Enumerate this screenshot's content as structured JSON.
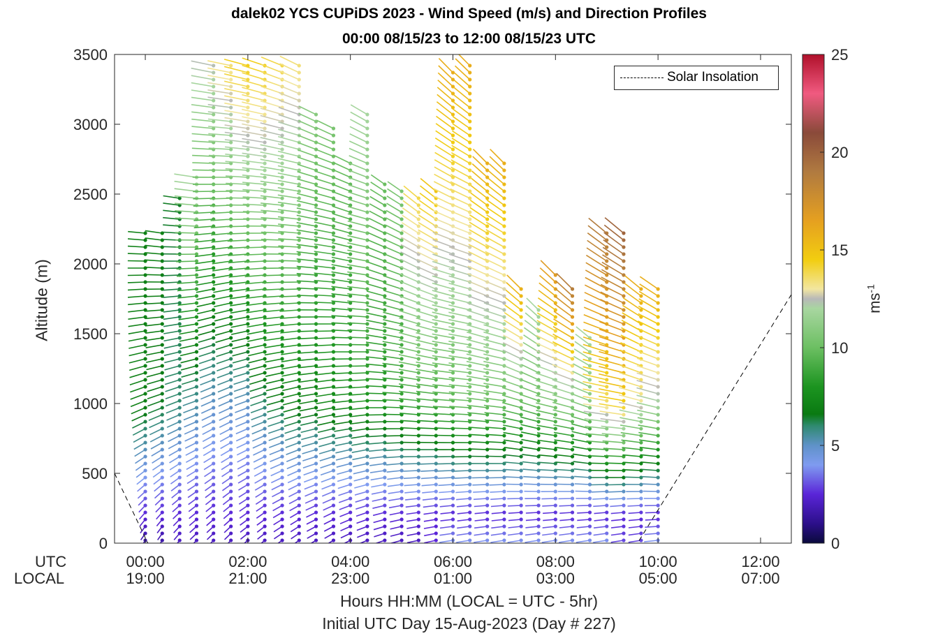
{
  "title_line1": "dalek02 YCS CUPiDS 2023 - Wind Speed (m/s) and Direction Profiles",
  "title_line2": "00:00 08/15/23 to 12:00 08/15/23  UTC",
  "chart_data": {
    "type": "scatter",
    "subtype": "wind barb profile (time-height), colored by wind speed",
    "ylabel": "Altitude (m)",
    "ylim": [
      0,
      3500
    ],
    "yticks": [
      "0",
      "500",
      "1000",
      "1500",
      "2000",
      "2500",
      "3000",
      "3500"
    ],
    "xlim_hours": [
      -0.6,
      12.6
    ],
    "xticks": [
      {
        "hour": 0,
        "utc": "00:00",
        "local": "19:00"
      },
      {
        "hour": 2,
        "utc": "02:00",
        "local": "21:00"
      },
      {
        "hour": 4,
        "utc": "04:00",
        "local": "23:00"
      },
      {
        "hour": 6,
        "utc": "06:00",
        "local": "01:00"
      },
      {
        "hour": 8,
        "utc": "08:00",
        "local": "03:00"
      },
      {
        "hour": 10,
        "utc": "10:00",
        "local": "05:00"
      },
      {
        "hour": 12,
        "utc": "12:00",
        "local": "07:00"
      }
    ],
    "row_label_utc": "UTC",
    "row_label_local": "LOCAL",
    "xlabel_line1": "Hours HH:MM  (LOCAL = UTC - 5hr)",
    "xlabel_line2": "Initial UTC Day 15-Aug-2023 (Day # 227)",
    "legend": [
      "Solar Insolation"
    ],
    "colorbar": {
      "label": "ms",
      "label_exponent": "-1",
      "range": [
        0,
        25
      ],
      "ticks": [
        "0",
        "5",
        "10",
        "15",
        "20",
        "25"
      ],
      "stops": [
        {
          "v": 0,
          "c": "#0a0a3c"
        },
        {
          "v": 1,
          "c": "#2c0f8a"
        },
        {
          "v": 2.5,
          "c": "#5a25d8"
        },
        {
          "v": 4,
          "c": "#7f9bf0"
        },
        {
          "v": 5,
          "c": "#5f92c8"
        },
        {
          "v": 6,
          "c": "#2f8a70"
        },
        {
          "v": 6.6,
          "c": "#0a7a12"
        },
        {
          "v": 8,
          "c": "#1c9420"
        },
        {
          "v": 10,
          "c": "#6cbf62"
        },
        {
          "v": 12,
          "c": "#a8d6a0"
        },
        {
          "v": 12.5,
          "c": "#b8b8b8"
        },
        {
          "v": 13,
          "c": "#f2e6a0"
        },
        {
          "v": 14.5,
          "c": "#f2cd10"
        },
        {
          "v": 16.5,
          "c": "#e5a020"
        },
        {
          "v": 19,
          "c": "#b07a40"
        },
        {
          "v": 21,
          "c": "#8a4a3a"
        },
        {
          "v": 23,
          "c": "#f05a80"
        },
        {
          "v": 25,
          "c": "#b0102a"
        }
      ]
    },
    "solar_insolation": [
      {
        "hour": -0.6,
        "alt": 500
      },
      {
        "hour": 0.05,
        "alt": 0
      },
      {
        "hour": 9.6,
        "alt": 0
      },
      {
        "hour": 12.6,
        "alt": 1780
      }
    ],
    "profiles": [
      {
        "hour": 0.0,
        "top": 2250,
        "dir_low": 200,
        "dir_high": 280,
        "spd_surface": 1.5,
        "spd_mid": 7,
        "spd_top": 7
      },
      {
        "hour": 0.33,
        "top": 2250,
        "dir_low": 200,
        "dir_high": 285,
        "spd_surface": 1.5,
        "spd_mid": 6.5,
        "spd_top": 7
      },
      {
        "hour": 0.67,
        "top": 2500,
        "dir_low": 205,
        "dir_high": 285,
        "spd_surface": 2,
        "spd_mid": 6,
        "spd_top": 6.5
      },
      {
        "hour": 1.0,
        "top": 2650,
        "dir_low": 210,
        "dir_high": 285,
        "spd_surface": 2,
        "spd_mid": 5.5,
        "spd_top": 12
      },
      {
        "hour": 1.33,
        "top": 3450,
        "dir_low": 210,
        "dir_high": 290,
        "spd_surface": 2,
        "spd_mid": 5,
        "spd_top": 12.5
      },
      {
        "hour": 1.67,
        "top": 3450,
        "dir_low": 210,
        "dir_high": 290,
        "spd_surface": 2,
        "spd_mid": 5,
        "spd_top": 13.5
      },
      {
        "hour": 2.0,
        "top": 3450,
        "dir_low": 215,
        "dir_high": 295,
        "spd_surface": 2,
        "spd_mid": 5,
        "spd_top": 14.5
      },
      {
        "hour": 2.33,
        "top": 3450,
        "dir_low": 215,
        "dir_high": 300,
        "spd_surface": 2,
        "spd_mid": 6,
        "spd_top": 14.5
      },
      {
        "hour": 2.67,
        "top": 3450,
        "dir_low": 220,
        "dir_high": 305,
        "spd_surface": 2,
        "spd_mid": 6.5,
        "spd_top": 14
      },
      {
        "hour": 3.0,
        "top": 3450,
        "dir_low": 220,
        "dir_high": 310,
        "spd_surface": 2,
        "spd_mid": 7,
        "spd_top": 13.5
      },
      {
        "hour": 3.33,
        "top": 3100,
        "dir_low": 225,
        "dir_high": 310,
        "spd_surface": 2,
        "spd_mid": 7,
        "spd_top": 11
      },
      {
        "hour": 3.67,
        "top": 3000,
        "dir_low": 225,
        "dir_high": 310,
        "spd_surface": 2,
        "spd_mid": 7.5,
        "spd_top": 10.5
      },
      {
        "hour": 4.0,
        "top": 2750,
        "dir_low": 230,
        "dir_high": 310,
        "spd_surface": 2,
        "spd_mid": 7.5,
        "spd_top": 10
      },
      {
        "hour": 4.33,
        "top": 3100,
        "dir_low": 235,
        "dir_high": 315,
        "spd_surface": 2,
        "spd_mid": 8,
        "spd_top": 12
      },
      {
        "hour": 4.67,
        "top": 2600,
        "dir_low": 240,
        "dir_high": 320,
        "spd_surface": 2,
        "spd_mid": 8,
        "spd_top": 10
      },
      {
        "hour": 5.0,
        "top": 2550,
        "dir_low": 245,
        "dir_high": 320,
        "spd_surface": 2,
        "spd_mid": 8.5,
        "spd_top": 10.5
      },
      {
        "hour": 5.33,
        "top": 2500,
        "dir_low": 250,
        "dir_high": 325,
        "spd_surface": 2,
        "spd_mid": 9,
        "spd_top": 14
      },
      {
        "hour": 5.67,
        "top": 2550,
        "dir_low": 250,
        "dir_high": 325,
        "spd_surface": 2.5,
        "spd_mid": 9,
        "spd_top": 15
      },
      {
        "hour": 6.0,
        "top": 3400,
        "dir_low": 255,
        "dir_high": 330,
        "spd_surface": 4,
        "spd_mid": 9.5,
        "spd_top": 16
      },
      {
        "hour": 6.33,
        "top": 3450,
        "dir_low": 255,
        "dir_high": 330,
        "spd_surface": 4,
        "spd_mid": 10,
        "spd_top": 16
      },
      {
        "hour": 6.67,
        "top": 2750,
        "dir_low": 255,
        "dir_high": 330,
        "spd_surface": 4,
        "spd_mid": 10,
        "spd_top": 16
      },
      {
        "hour": 7.0,
        "top": 2750,
        "dir_low": 255,
        "dir_high": 330,
        "spd_surface": 4,
        "spd_mid": 10,
        "spd_top": 16
      },
      {
        "hour": 7.33,
        "top": 1850,
        "dir_low": 255,
        "dir_high": 330,
        "spd_surface": 4,
        "spd_mid": 10,
        "spd_top": 16
      },
      {
        "hour": 7.67,
        "top": 1700,
        "dir_low": 255,
        "dir_high": 330,
        "spd_surface": 4,
        "spd_mid": 10,
        "spd_top": 12
      },
      {
        "hour": 8.0,
        "top": 1950,
        "dir_low": 255,
        "dir_high": 330,
        "spd_surface": 4,
        "spd_mid": 10.5,
        "spd_top": 17
      },
      {
        "hour": 8.33,
        "top": 1850,
        "dir_low": 255,
        "dir_high": 330,
        "spd_surface": 4,
        "spd_mid": 11,
        "spd_top": 19
      },
      {
        "hour": 8.67,
        "top": 1500,
        "dir_low": 255,
        "dir_high": 325,
        "spd_surface": 4,
        "spd_mid": 11,
        "spd_top": 12
      },
      {
        "hour": 9.0,
        "top": 2250,
        "dir_low": 255,
        "dir_high": 325,
        "spd_surface": 4,
        "spd_mid": 13.5,
        "spd_top": 19
      },
      {
        "hour": 9.33,
        "top": 2250,
        "dir_low": 255,
        "dir_high": 325,
        "spd_surface": 3,
        "spd_mid": 14.5,
        "spd_top": 20
      },
      {
        "hour": 9.67,
        "top": 1850,
        "dir_low": 255,
        "dir_high": 325,
        "spd_surface": 3,
        "spd_mid": 13,
        "spd_top": 16
      },
      {
        "hour": 10.0,
        "top": 1850,
        "dir_low": 260,
        "dir_high": 320,
        "spd_surface": 4,
        "spd_mid": 12,
        "spd_top": 16
      }
    ]
  }
}
